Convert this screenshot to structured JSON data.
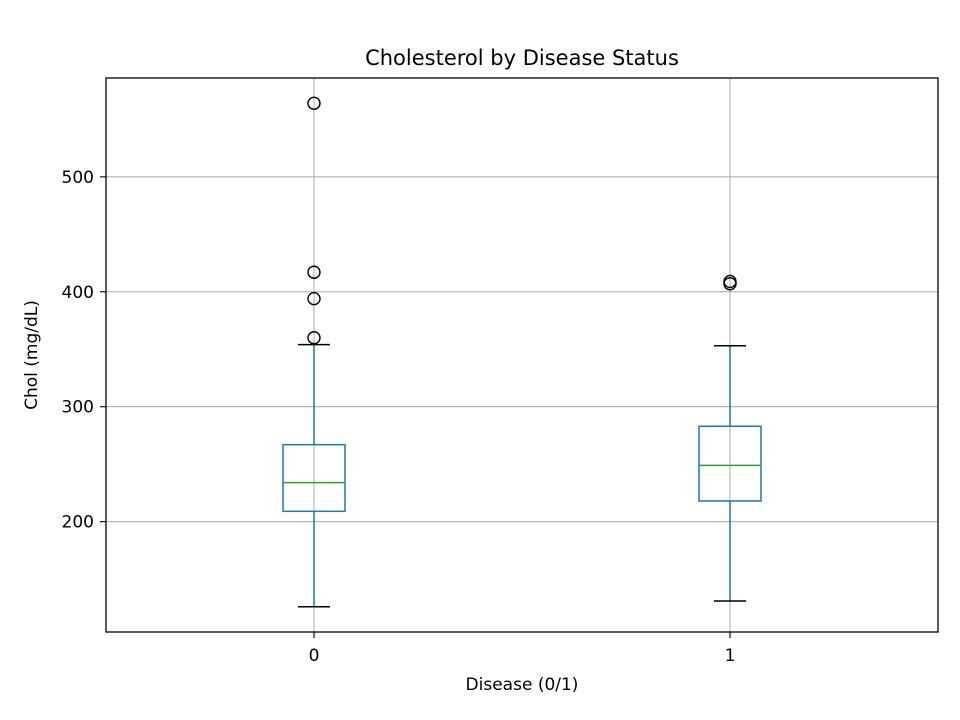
{
  "chart_data": {
    "type": "boxplot",
    "title": "Cholesterol by Disease Status",
    "xlabel": "Disease (0/1)",
    "ylabel": "Chol (mg/dL)",
    "categories": [
      "0",
      "1"
    ],
    "ylim": [
      104,
      586
    ],
    "yticks": [
      200,
      300,
      400,
      500
    ],
    "grid": true,
    "legend": "none",
    "boxes": [
      {
        "category": "0",
        "whisker_low": 126,
        "q1": 209,
        "median": 234,
        "q3": 267,
        "whisker_high": 354,
        "outliers": [
          360,
          394,
          417,
          564
        ]
      },
      {
        "category": "1",
        "whisker_low": 131,
        "q1": 218,
        "median": 249,
        "q3": 283,
        "whisker_high": 353,
        "outliers": [
          407,
          409
        ]
      }
    ],
    "colors": {
      "box": "#1f77b4",
      "median": "#2ca02c",
      "whisker": "#1f77b4",
      "cap": "#000000",
      "outlier": "#000000",
      "grid": "#b0b0b0"
    }
  }
}
